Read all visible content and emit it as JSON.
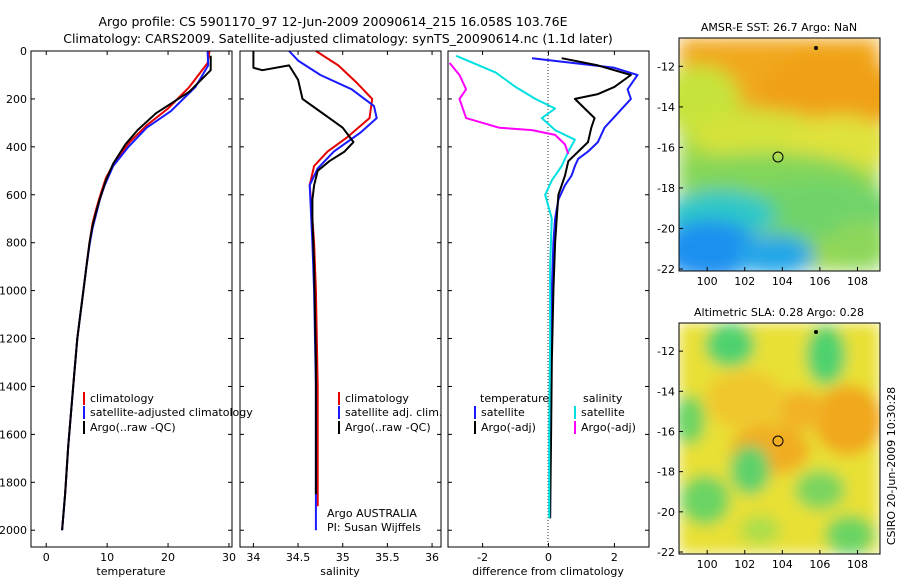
{
  "titles": {
    "line1": "Argo profile: CS 5901170_97 12-Jun-2009 20090614_215 16.058S 103.76E",
    "line2": "Climatology: CARS2009. Satellite-adjusted climatology: synTS_20090614.nc (1.1d later)"
  },
  "colors": {
    "clim": "#e60000",
    "sat": "#1a1aff",
    "argo": "#000000",
    "cyan": "#00e0e0",
    "magenta": "#ff00ff"
  },
  "chart_data": [
    {
      "type": "line",
      "id": "temperature",
      "xlabel": "temperature",
      "ylabel": "",
      "xlim": [
        -2.5,
        30.5
      ],
      "ylim": [
        2070,
        0
      ],
      "xticks": [
        0,
        10,
        20,
        30
      ],
      "yticks": [
        0,
        200,
        400,
        600,
        800,
        1000,
        1200,
        1400,
        1600,
        1800,
        2000
      ],
      "legend": {
        "position": "lower-right",
        "items": [
          "climatology",
          "satellite-adjusted climatology",
          "Argo(..raw -QC)"
        ]
      },
      "series": [
        {
          "name": "climatology",
          "color": "clim",
          "x": [
            26.8,
            26.5,
            23.5,
            20,
            16.5,
            13.7,
            11.3,
            9.8,
            8.9,
            8.2,
            7.6,
            7.1,
            6.6,
            6.1,
            5.6,
            5.1,
            4.6,
            4.1,
            3.6,
            3.1,
            2.6
          ],
          "y": [
            0,
            50,
            150,
            240,
            310,
            380,
            460,
            530,
            600,
            660,
            720,
            800,
            900,
            1000,
            1100,
            1200,
            1350,
            1500,
            1650,
            1850,
            2000
          ]
        },
        {
          "name": "satellite-adjusted climatology",
          "color": "sat",
          "x": [
            26.5,
            26.6,
            24.5,
            20.5,
            16.5,
            13.5,
            11,
            9.6,
            8.8,
            8.2,
            7.6,
            7.1,
            6.6,
            6.1,
            5.6,
            5.1,
            4.6,
            4.1,
            3.6,
            3.1,
            2.6
          ],
          "y": [
            0,
            60,
            150,
            250,
            320,
            400,
            480,
            560,
            620,
            680,
            740,
            810,
            900,
            1000,
            1100,
            1200,
            1350,
            1500,
            1650,
            1850,
            2000
          ]
        },
        {
          "name": "Argo(..raw -QC)",
          "color": "argo",
          "x": [
            27,
            27,
            23.5,
            18,
            15,
            13,
            11,
            9.8,
            8.9,
            8.2,
            7.6,
            7.1,
            6.6,
            6.1,
            5.6,
            5.1,
            4.6,
            4.1,
            3.6,
            3.1,
            2.6
          ],
          "y": [
            20,
            80,
            170,
            260,
            330,
            390,
            470,
            540,
            610,
            670,
            730,
            800,
            900,
            1000,
            1100,
            1200,
            1350,
            1500,
            1650,
            1850,
            2000
          ]
        }
      ]
    },
    {
      "type": "line",
      "id": "salinity",
      "xlabel": "salinity",
      "xlim": [
        33.85,
        36.1
      ],
      "ylim": [
        2070,
        0
      ],
      "xticks": [
        34,
        34.5,
        35,
        35.5,
        36
      ],
      "legend": {
        "position": "lower-right",
        "items": [
          "climatology",
          "satellite adj. clim.",
          "Argo(..raw -QC)"
        ]
      },
      "annotations": [
        "Argo AUSTRALIA",
        "PI: Susan Wijffels"
      ],
      "series": [
        {
          "name": "climatology",
          "color": "clim",
          "x": [
            34.7,
            34.95,
            35.15,
            35.33,
            35.3,
            35.05,
            34.83,
            34.68,
            34.63,
            34.65,
            34.68,
            34.7,
            34.72,
            34.72
          ],
          "y": [
            0,
            60,
            130,
            200,
            280,
            360,
            420,
            480,
            560,
            650,
            800,
            1000,
            1400,
            1900
          ]
        },
        {
          "name": "satellite adj. clim.",
          "color": "sat",
          "x": [
            34.4,
            34.5,
            34.75,
            35.1,
            35.35,
            35.38,
            35.2,
            34.9,
            34.72,
            34.63,
            34.64,
            34.66,
            34.68,
            34.7,
            34.7
          ],
          "y": [
            0,
            40,
            100,
            160,
            230,
            280,
            340,
            420,
            490,
            560,
            640,
            800,
            1000,
            1400,
            2000
          ]
        },
        {
          "name": "Argo(..raw -QC)",
          "color": "argo",
          "x": [
            34,
            34,
            34.1,
            34.4,
            34.5,
            34.55,
            34.7,
            34.85,
            35.0,
            35.12,
            35.02,
            34.85,
            34.72,
            34.68,
            34.66,
            34.66,
            34.68,
            34.7,
            34.7
          ],
          "y": [
            0,
            70,
            80,
            60,
            120,
            200,
            240,
            280,
            320,
            380,
            420,
            460,
            500,
            560,
            620,
            700,
            900,
            1300,
            1850
          ]
        }
      ]
    },
    {
      "type": "line",
      "id": "difference",
      "xlabel": "difference from climatology",
      "xlim": [
        -3.05,
        3.05
      ],
      "ylim": [
        2070,
        0
      ],
      "xticks": [
        -2,
        0,
        2
      ],
      "legend": {
        "position": "lower-right",
        "headers": [
          "temperature",
          "salinity"
        ],
        "items": [
          "satellite",
          "Argo(-adj)",
          "satellite",
          "Argo(-adj)"
        ]
      },
      "series": [
        {
          "name": "temperature satellite",
          "color": "sat",
          "x": [
            -0.5,
            2,
            2.7,
            2.4,
            2.5,
            2.1,
            1.7,
            1.5,
            1.2,
            0.9,
            0.8,
            0.7,
            0.5,
            0.3,
            0.2,
            0.15,
            0.1,
            0.08,
            0.06,
            0.05
          ],
          "y": [
            30,
            70,
            100,
            160,
            200,
            260,
            320,
            380,
            420,
            450,
            480,
            520,
            560,
            620,
            700,
            800,
            1000,
            1300,
            1600,
            1950
          ]
        },
        {
          "name": "temperature Argo(-adj)",
          "color": "argo",
          "x": [
            0.4,
            1.5,
            2.5,
            2.0,
            1.5,
            0.8,
            1.1,
            1.4,
            1.3,
            1.2,
            0.9,
            0.6,
            0.5,
            0.3,
            0.25,
            0.2,
            0.15,
            0.1,
            0.08,
            0.05
          ],
          "y": [
            30,
            60,
            100,
            150,
            180,
            200,
            240,
            280,
            320,
            380,
            420,
            460,
            520,
            600,
            700,
            800,
            1000,
            1300,
            1600,
            1950
          ]
        },
        {
          "name": "salinity satellite",
          "color": "cyan",
          "x": [
            -2.8,
            -1.6,
            -1.0,
            -0.4,
            0.2,
            -0.2,
            0.2,
            0.8,
            0.6,
            0.4,
            0.1,
            -0.1,
            0.1,
            0.05,
            0.05,
            0.02,
            0.02
          ],
          "y": [
            20,
            90,
            150,
            200,
            240,
            280,
            330,
            370,
            420,
            480,
            540,
            600,
            700,
            900,
            1200,
            1600,
            1950
          ]
        },
        {
          "name": "salinity Argo(-adj)",
          "color": "magenta",
          "x": [
            -3,
            -2.7,
            -2.5,
            -2.7,
            -2.5,
            -1.5,
            -0.5,
            0.2,
            0.5,
            0.6
          ],
          "y": [
            50,
            100,
            160,
            200,
            280,
            320,
            330,
            350,
            390,
            430
          ]
        }
      ]
    },
    {
      "type": "heatmap",
      "id": "sst-map",
      "title": "AMSR-E SST: 26.7  Argo: NaN",
      "xticks": [
        100,
        102,
        104,
        106,
        108
      ],
      "yticks": [
        -12,
        -14,
        -16,
        -18,
        -20,
        -22
      ],
      "xlim": [
        98.5,
        109.2
      ],
      "ylim": [
        -22.1,
        -10.6
      ],
      "marker": {
        "lon": 103.76,
        "lat": -16.058
      }
    },
    {
      "type": "heatmap",
      "id": "sla-map",
      "title": "Altimetric SLA: 0.28  Argo: 0.28",
      "xticks": [
        100,
        102,
        104,
        106,
        108
      ],
      "yticks": [
        -12,
        -14,
        -16,
        -18,
        -20,
        -22
      ],
      "xlim": [
        98.5,
        109.2
      ],
      "ylim": [
        -22.1,
        -10.6
      ],
      "marker": {
        "lon": 103.76,
        "lat": -16.058
      }
    }
  ],
  "footer": {
    "stamp": "CSIRO 20-Jun-2009 10:30:28"
  }
}
